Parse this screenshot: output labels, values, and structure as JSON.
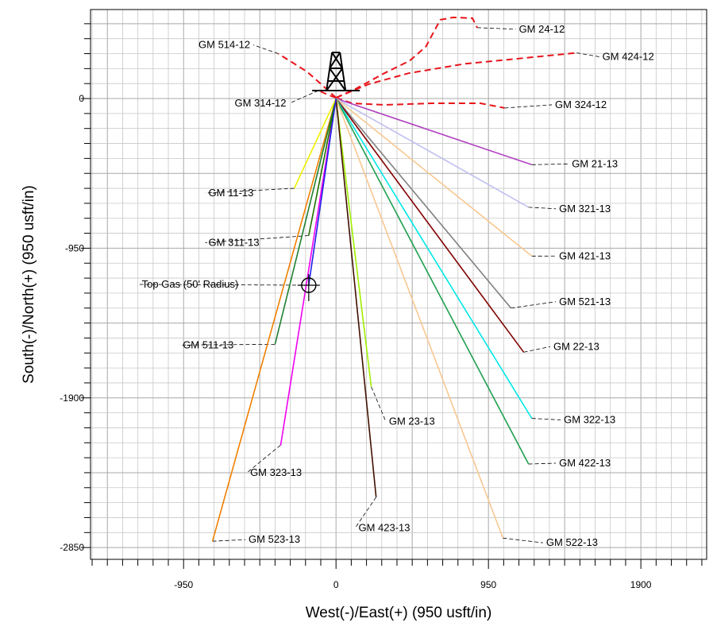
{
  "chart_data": {
    "type": "line",
    "xlabel": "West(-)/East(+) (950 usft/in)",
    "ylabel": "South(-)/North(+) (950 usft/in)",
    "xlim": [
      -1530,
      2310
    ],
    "ylim": [
      -2925,
      565
    ],
    "x_ticks": [
      -950,
      0,
      950,
      1900
    ],
    "y_ticks": [
      0,
      -950,
      -1900,
      -2850
    ],
    "grid": true,
    "series": [
      {
        "name": "GM 514-12",
        "color": "#e8141a",
        "dash": true,
        "points": [
          [
            0,
            5
          ],
          [
            -80,
            80
          ],
          [
            -180,
            170
          ],
          [
            -360,
            285
          ]
        ],
        "label_at": [
          -535,
          320
        ],
        "label_anchor": "end"
      },
      {
        "name": "GM 314-12",
        "color": "#e8141a",
        "dash": true,
        "points": [
          [
            0,
            5
          ],
          [
            -40,
            20
          ],
          [
            -110,
            50
          ]
        ],
        "label_at": [
          -310,
          -50
        ],
        "label_anchor": "end"
      },
      {
        "name": "GM 24-12",
        "color": "#e8141a",
        "dash": true,
        "points": [
          [
            0,
            5
          ],
          [
            120,
            60
          ],
          [
            300,
            160
          ],
          [
            460,
            240
          ],
          [
            560,
            330
          ],
          [
            650,
            500
          ],
          [
            730,
            515
          ],
          [
            850,
            510
          ],
          [
            880,
            450
          ]
        ],
        "label_at": [
          1140,
          420
        ],
        "label_anchor": "start"
      },
      {
        "name": "GM 424-12",
        "color": "#e8141a",
        "dash": true,
        "points": [
          [
            0,
            5
          ],
          [
            200,
            90
          ],
          [
            450,
            160
          ],
          [
            800,
            220
          ],
          [
            1200,
            260
          ],
          [
            1500,
            290
          ]
        ],
        "label_at": [
          1660,
          245
        ],
        "label_anchor": "start"
      },
      {
        "name": "GM 324-12",
        "color": "#e8141a",
        "dash": true,
        "points": [
          [
            0,
            5
          ],
          [
            100,
            -30
          ],
          [
            300,
            -40
          ],
          [
            600,
            -30
          ],
          [
            900,
            -30
          ],
          [
            1050,
            -60
          ]
        ],
        "label_at": [
          1365,
          -60
        ],
        "label_anchor": "start"
      },
      {
        "name": "GM 21-13",
        "color": "#b040c0",
        "points": [
          [
            0,
            0
          ],
          [
            1220,
            -420
          ]
        ],
        "label_at": [
          1470,
          -435
        ],
        "label_anchor": "start"
      },
      {
        "name": "GM 321-13",
        "color": "#c0c0f0",
        "points": [
          [
            0,
            0
          ],
          [
            1200,
            -690
          ]
        ],
        "label_at": [
          1390,
          -720
        ],
        "label_anchor": "start"
      },
      {
        "name": "GM 421-13",
        "color": "#f8c890",
        "points": [
          [
            0,
            0
          ],
          [
            1220,
            -1000
          ]
        ],
        "label_at": [
          1390,
          -1020
        ],
        "label_anchor": "start"
      },
      {
        "name": "GM 521-13",
        "color": "#808080",
        "points": [
          [
            0,
            0
          ],
          [
            1090,
            -1330
          ]
        ],
        "label_at": [
          1390,
          -1310
        ],
        "label_anchor": "start"
      },
      {
        "name": "GM 22-13",
        "color": "#800000",
        "points": [
          [
            0,
            0
          ],
          [
            1170,
            -1610
          ]
        ],
        "label_at": [
          1355,
          -1595
        ],
        "label_anchor": "start"
      },
      {
        "name": "GM 322-13",
        "color": "#00e8e8",
        "points": [
          [
            0,
            0
          ],
          [
            1220,
            -2030
          ]
        ],
        "label_at": [
          1420,
          -2060
        ],
        "label_anchor": "start"
      },
      {
        "name": "GM 422-13",
        "color": "#20a050",
        "points": [
          [
            0,
            0
          ],
          [
            1200,
            -2320
          ]
        ],
        "label_at": [
          1390,
          -2335
        ],
        "label_anchor": "start"
      },
      {
        "name": "GM 522-13",
        "color": "#f8c890",
        "points": [
          [
            0,
            0
          ],
          [
            1040,
            -2790
          ]
        ],
        "label_at": [
          1310,
          -2840
        ],
        "label_anchor": "start"
      },
      {
        "name": "GM 23-13",
        "color": "#a0f000",
        "points": [
          [
            0,
            0
          ],
          [
            220,
            -1830
          ]
        ],
        "label_at": [
          330,
          -2070
        ],
        "label_anchor": "start"
      },
      {
        "name": "GM 423-13",
        "color": "#401000",
        "points": [
          [
            0,
            0
          ],
          [
            250,
            -2530
          ]
        ],
        "label_at": [
          140,
          -2745
        ],
        "label_anchor": "start"
      },
      {
        "name": "GM 323-13",
        "color": "#f000f0",
        "points": [
          [
            0,
            0
          ],
          [
            -345,
            -2200
          ]
        ],
        "label_at": [
          -535,
          -2395
        ],
        "label_anchor": "start"
      },
      {
        "name": "GM 523-13",
        "color": "#f08000",
        "points": [
          [
            0,
            0
          ],
          [
            -770,
            -2810
          ]
        ],
        "label_at": [
          -545,
          -2820
        ],
        "label_anchor": "start"
      },
      {
        "name": "GM 511-13",
        "color": "#208030",
        "points": [
          [
            0,
            0
          ],
          [
            -380,
            -1560
          ]
        ],
        "label_at": [
          -955,
          -1585
        ],
        "label_anchor": "start"
      },
      {
        "name": "GM 311-13",
        "color": "#207000",
        "points": [
          [
            0,
            0
          ],
          [
            -170,
            -870
          ]
        ],
        "label_at": [
          -795,
          -935
        ],
        "label_anchor": "start"
      },
      {
        "name": "GM 11-13",
        "color": "#f0f000",
        "points": [
          [
            0,
            0
          ],
          [
            -260,
            -570
          ]
        ],
        "label_at": [
          -795,
          -620
        ],
        "label_anchor": "start"
      },
      {
        "name": "Top Gas (50' Radius)",
        "color": "#2020e8",
        "points": [
          [
            0,
            0
          ],
          [
            -170,
            -1185
          ]
        ],
        "label_at": [
          -1210,
          -1200
        ],
        "label_anchor": "start"
      }
    ],
    "target": {
      "name": "Top Gas (50' Radius)",
      "x": -170,
      "y": -1185
    },
    "rig_icon": "drilling-rig-icon",
    "gridline_color": "#c8c8c8",
    "leader_color": "#000000"
  }
}
